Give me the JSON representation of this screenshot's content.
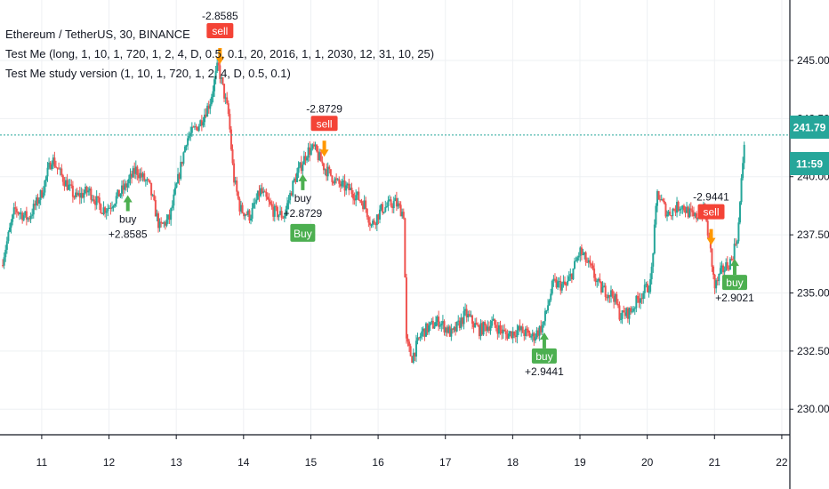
{
  "header": {
    "symbol_line": "Ethereum / TetherUS, 30, BINANCE",
    "indicator_1": "Test Me (long, 1, 10, 1, 720, 1, 2, 4, D, 0.5, 0.1, 20, 2016, 1, 1, 2030, 12, 31, 10, 25)",
    "indicator_2": "Test Me study version (1, 10, 1, 720, 1, 2, 4, D, 0.5, 0.1)"
  },
  "price_tags": {
    "last_price": "241.79",
    "countdown": "11:59"
  },
  "colors": {
    "up": "#26a69a",
    "down": "#ef5350",
    "buy": "#4caf50",
    "sell": "#f44336",
    "short_arrow": "#ff9800",
    "price_tag": "#26a69a",
    "grid": "#eef0f3"
  },
  "chart_data": {
    "type": "candlestick",
    "title": "Ethereum / TetherUS, 30, BINANCE",
    "x_tick_labels": [
      "11",
      "12",
      "13",
      "14",
      "15",
      "16",
      "17",
      "18",
      "19",
      "20",
      "21",
      "22"
    ],
    "y_tick_labels": [
      "230.00",
      "232.50",
      "235.00",
      "237.50",
      "240.00",
      "242.50",
      "245.00"
    ],
    "ylim": [
      228.9,
      247.6
    ],
    "xlim": [
      10.38,
      22.12
    ],
    "last_price": 241.79,
    "close_path": [
      {
        "x": 10.4,
        "y": 236.2
      },
      {
        "x": 10.6,
        "y": 238.6
      },
      {
        "x": 10.8,
        "y": 238.2
      },
      {
        "x": 11.0,
        "y": 239.3
      },
      {
        "x": 11.15,
        "y": 240.8
      },
      {
        "x": 11.3,
        "y": 240.0
      },
      {
        "x": 11.5,
        "y": 239.1
      },
      {
        "x": 11.7,
        "y": 239.4
      },
      {
        "x": 11.9,
        "y": 238.6
      },
      {
        "x": 12.0,
        "y": 238.7
      },
      {
        "x": 12.25,
        "y": 239.6
      },
      {
        "x": 12.4,
        "y": 240.3
      },
      {
        "x": 12.6,
        "y": 239.6
      },
      {
        "x": 12.75,
        "y": 237.8
      },
      {
        "x": 12.9,
        "y": 238.2
      },
      {
        "x": 13.05,
        "y": 240.2
      },
      {
        "x": 13.15,
        "y": 241.6
      },
      {
        "x": 13.35,
        "y": 242.3
      },
      {
        "x": 13.5,
        "y": 243.2
      },
      {
        "x": 13.62,
        "y": 244.8
      },
      {
        "x": 13.78,
        "y": 242.6
      },
      {
        "x": 13.85,
        "y": 240.0
      },
      {
        "x": 13.95,
        "y": 238.6
      },
      {
        "x": 14.1,
        "y": 238.3
      },
      {
        "x": 14.25,
        "y": 239.4
      },
      {
        "x": 14.45,
        "y": 238.5
      },
      {
        "x": 14.6,
        "y": 238.3
      },
      {
        "x": 14.75,
        "y": 239.8
      },
      {
        "x": 14.95,
        "y": 241.1
      },
      {
        "x": 15.05,
        "y": 241.2
      },
      {
        "x": 15.2,
        "y": 240.4
      },
      {
        "x": 15.4,
        "y": 239.7
      },
      {
        "x": 15.6,
        "y": 239.4
      },
      {
        "x": 15.8,
        "y": 238.8
      },
      {
        "x": 15.9,
        "y": 237.9
      },
      {
        "x": 16.05,
        "y": 238.6
      },
      {
        "x": 16.25,
        "y": 238.9
      },
      {
        "x": 16.38,
        "y": 238.4
      },
      {
        "x": 16.42,
        "y": 232.9
      },
      {
        "x": 16.5,
        "y": 232.2
      },
      {
        "x": 16.65,
        "y": 233.3
      },
      {
        "x": 16.9,
        "y": 233.8
      },
      {
        "x": 17.1,
        "y": 233.2
      },
      {
        "x": 17.3,
        "y": 234.1
      },
      {
        "x": 17.5,
        "y": 233.4
      },
      {
        "x": 17.7,
        "y": 233.7
      },
      {
        "x": 17.9,
        "y": 233.2
      },
      {
        "x": 18.1,
        "y": 233.4
      },
      {
        "x": 18.3,
        "y": 233.1
      },
      {
        "x": 18.45,
        "y": 233.6
      },
      {
        "x": 18.6,
        "y": 235.4
      },
      {
        "x": 18.8,
        "y": 235.3
      },
      {
        "x": 18.9,
        "y": 236.0
      },
      {
        "x": 19.0,
        "y": 236.8
      },
      {
        "x": 19.15,
        "y": 236.1
      },
      {
        "x": 19.3,
        "y": 235.2
      },
      {
        "x": 19.5,
        "y": 234.9
      },
      {
        "x": 19.6,
        "y": 234.0
      },
      {
        "x": 19.75,
        "y": 234.2
      },
      {
        "x": 19.9,
        "y": 234.9
      },
      {
        "x": 20.05,
        "y": 235.4
      },
      {
        "x": 20.15,
        "y": 239.3
      },
      {
        "x": 20.3,
        "y": 238.4
      },
      {
        "x": 20.5,
        "y": 238.8
      },
      {
        "x": 20.7,
        "y": 238.2
      },
      {
        "x": 20.85,
        "y": 238.6
      },
      {
        "x": 20.95,
        "y": 236.6
      },
      {
        "x": 21.0,
        "y": 235.2
      },
      {
        "x": 21.1,
        "y": 235.9
      },
      {
        "x": 21.25,
        "y": 236.4
      },
      {
        "x": 21.35,
        "y": 237.6
      },
      {
        "x": 21.45,
        "y": 241.9
      }
    ],
    "signals": [
      {
        "x": 12.28,
        "kind": "buy",
        "label": "buy",
        "value": "+2.8585",
        "badge": false
      },
      {
        "x": 13.65,
        "kind": "sell",
        "label": "sell",
        "value": "-2.8585",
        "badge": true
      },
      {
        "x": 14.88,
        "kind": "buy",
        "label": "buy",
        "value": "+2.8729",
        "badge": false,
        "extra_badge": "Buy"
      },
      {
        "x": 15.2,
        "kind": "sell",
        "label": "sell",
        "value": "-2.8729",
        "badge": true
      },
      {
        "x": 18.47,
        "kind": "buy",
        "label": "buy",
        "value": "+2.9441",
        "badge": true
      },
      {
        "x": 20.95,
        "kind": "sell",
        "label": "sell",
        "value": "-2.9441",
        "badge": true
      },
      {
        "x": 21.3,
        "kind": "buy",
        "label": "buy",
        "value": "+2.9021",
        "badge": true
      }
    ]
  }
}
